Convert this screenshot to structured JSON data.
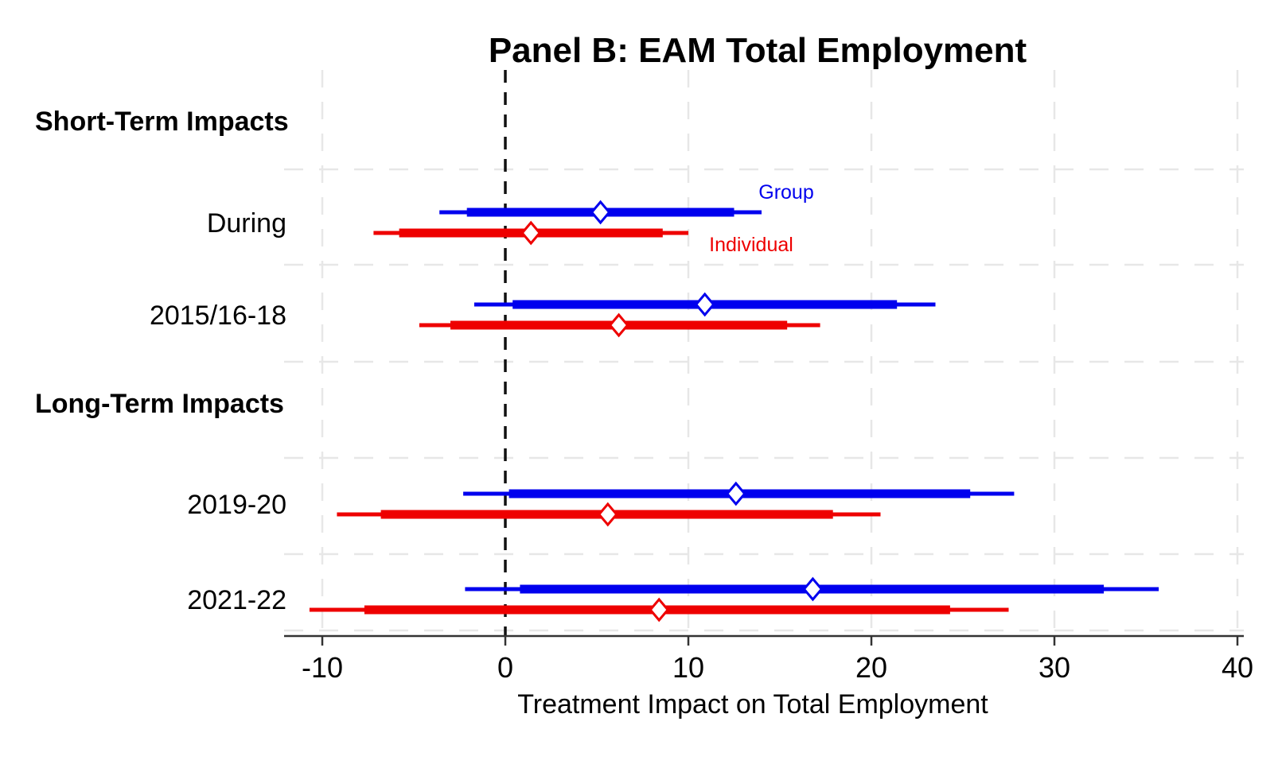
{
  "chart_data": {
    "type": "scatter",
    "subtype": "coefficient-forest-plot",
    "title": "Panel B: EAM Total Employment",
    "xlabel": "Treatment Impact on Total Employment",
    "xlim": [
      -12.1,
      40.3
    ],
    "xticks": [
      -10,
      0,
      10,
      20,
      30,
      40
    ],
    "zero_reference_line": 0,
    "grid": "dashed-light-gray",
    "legend_position": "annotations-near-during-row",
    "colors": {
      "group": "#0000EE",
      "individual": "#EE0000",
      "axis": "#333333",
      "text": "#000000",
      "gridline": "#E7E7E7",
      "zero_line": "#111111"
    },
    "rows": [
      {
        "label": "Short-Term Impacts",
        "type": "header"
      },
      {
        "label": "During",
        "type": "category"
      },
      {
        "label": "2015/16-18",
        "type": "category"
      },
      {
        "label": "Long-Term Impacts",
        "type": "header"
      },
      {
        "label": "2019-20",
        "type": "category"
      },
      {
        "label": "2021-22",
        "type": "category"
      }
    ],
    "series": [
      {
        "name": "Group",
        "color": "#0000EE",
        "marker": "open-diamond",
        "points": [
          {
            "row": "During",
            "estimate": 5.2,
            "ci_thick": [
              -2.1,
              12.5
            ],
            "ci_thin": [
              -3.6,
              14.0
            ]
          },
          {
            "row": "2015/16-18",
            "estimate": 10.9,
            "ci_thick": [
              0.4,
              21.4
            ],
            "ci_thin": [
              -1.7,
              23.5
            ]
          },
          {
            "row": "2019-20",
            "estimate": 12.6,
            "ci_thick": [
              0.2,
              25.4
            ],
            "ci_thin": [
              -2.3,
              27.8
            ]
          },
          {
            "row": "2021-22",
            "estimate": 16.8,
            "ci_thick": [
              0.8,
              32.7
            ],
            "ci_thin": [
              -2.2,
              35.7
            ]
          }
        ]
      },
      {
        "name": "Individual",
        "color": "#EE0000",
        "marker": "open-diamond",
        "points": [
          {
            "row": "During",
            "estimate": 1.4,
            "ci_thick": [
              -5.8,
              8.6
            ],
            "ci_thin": [
              -7.2,
              10.0
            ]
          },
          {
            "row": "2015/16-18",
            "estimate": 6.2,
            "ci_thick": [
              -3.0,
              15.4
            ],
            "ci_thin": [
              -4.7,
              17.2
            ]
          },
          {
            "row": "2019-20",
            "estimate": 5.6,
            "ci_thick": [
              -6.8,
              17.9
            ],
            "ci_thin": [
              -9.2,
              20.5
            ]
          },
          {
            "row": "2021-22",
            "estimate": 8.4,
            "ci_thick": [
              -7.7,
              24.3
            ],
            "ci_thin": [
              -10.7,
              27.5
            ]
          }
        ]
      }
    ],
    "legend": [
      {
        "label": "Group",
        "color": "#0000EE"
      },
      {
        "label": "Individual",
        "color": "#EE0000"
      }
    ]
  }
}
